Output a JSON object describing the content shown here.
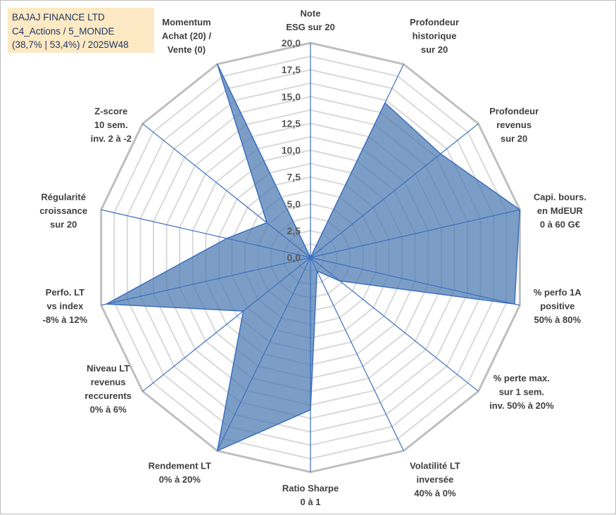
{
  "header": {
    "lines": [
      "BAJAJ FINANCE LTD",
      "C4_Actions / 5_MONDE",
      "(38,7% | 53,4%) / 2025W48"
    ]
  },
  "colors": {
    "fill": "#4a78b0",
    "fill_opacity": "0.72",
    "axis": "#3c6fc0",
    "outline": "#3c6fc0",
    "grid_outer": "#bfbfbf",
    "grid_inner": "#d9d9d9",
    "header_bg": "#fde9c3",
    "header_text": "#1f3864"
  },
  "chart_data": {
    "type": "radar",
    "title": "",
    "rmin": 0,
    "rmax": 20,
    "tick_step": 2.5,
    "tick_labels": [
      "0,0",
      "2,5",
      "5,0",
      "7,5",
      "10,0",
      "12,5",
      "15,0",
      "17,5",
      "20,0"
    ],
    "axes": [
      {
        "lines": [
          "Note",
          "ESG sur 20"
        ],
        "value": 0
      },
      {
        "lines": [
          "Profondeur",
          "historique",
          "sur 20"
        ],
        "value": 16
      },
      {
        "lines": [
          "Profondeur",
          "revenus",
          "sur 20"
        ],
        "value": 15.5
      },
      {
        "lines": [
          "Capi. bours.",
          "en MdEUR",
          "0 à 60 G€"
        ],
        "value": 20
      },
      {
        "lines": [
          "% perfo 1A",
          "positive",
          "50% à 80%"
        ],
        "value": 19.5
      },
      {
        "lines": [
          "% perte max.",
          "sur 1 sem.",
          "inv. 50% à 20%"
        ],
        "value": 3.5
      },
      {
        "lines": [
          "Volatilité LT",
          "inversée",
          "40% à 0%"
        ],
        "value": 1.4
      },
      {
        "lines": [
          "Ratio Sharpe",
          "0 à 1"
        ],
        "value": 14.2
      },
      {
        "lines": [
          "Rendement LT",
          "0% à 20%"
        ],
        "value": 20
      },
      {
        "lines": [
          "Niveau LT",
          "revenus",
          "reccurents",
          "0% à 6%"
        ],
        "value": 8
      },
      {
        "lines": [
          "Perfo. LT",
          "vs index",
          "-8% à 12%"
        ],
        "value": 19.5
      },
      {
        "lines": [
          "Régularité",
          "croissance",
          "sur 20"
        ],
        "value": 8
      },
      {
        "lines": [
          "Z-score",
          "10 sem.",
          "inv. 2 à -2"
        ],
        "value": 5.2
      },
      {
        "lines": [
          "Momentum",
          "Achat (20) /",
          "Vente (0)"
        ],
        "value": 20
      }
    ]
  }
}
